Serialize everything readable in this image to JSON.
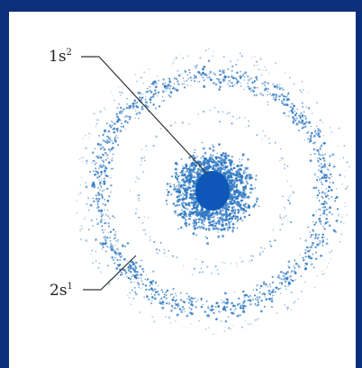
{
  "labels": {
    "inner": {
      "text": "1s",
      "sup": "2"
    },
    "outer": {
      "text": "2s",
      "sup": "1"
    }
  },
  "colors": {
    "frame": "#0c2f7a",
    "dots": "#2f78c2",
    "core": "#0e57b8",
    "line": "#333333"
  }
}
